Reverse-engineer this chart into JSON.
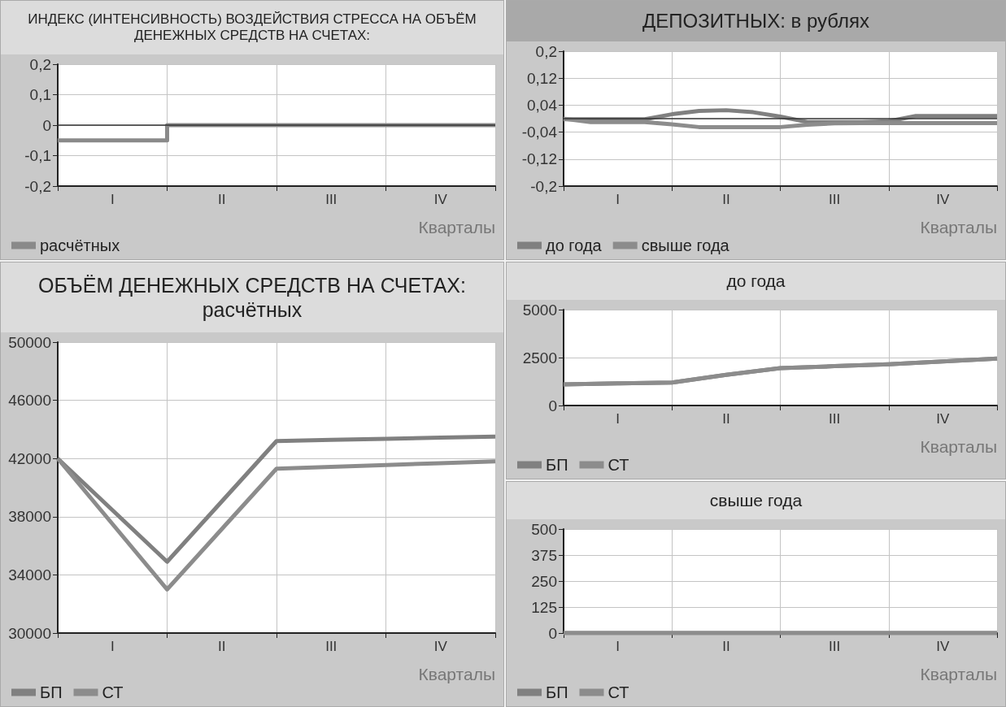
{
  "chart_data": [
    {
      "type": "step",
      "title": "ИНДЕКС (ИНТЕНСИВНОСТЬ) ВОЗДЕЙСТВИЯ СТРЕССА НА ОБЪЁМ ДЕНЕЖНЫХ СРЕДСТВ НА СЧЕТАХ:",
      "xlabel": "Кварталы",
      "categories": [
        null,
        "I",
        null,
        "II",
        null,
        "III",
        null,
        "IV",
        null
      ],
      "ylim": [
        -0.2,
        0.2
      ],
      "yticks": [
        {
          "value": -0.2,
          "label": "-0,2"
        },
        {
          "value": -0.1,
          "label": "-0,1"
        },
        0,
        {
          "value": 0.1,
          "label": "0,1"
        },
        {
          "value": 0.2,
          "label": "0,2"
        }
      ],
      "grid": true,
      "legend": "bottom left",
      "marker": "none",
      "ref_lines": [
        {
          "axis": "y",
          "value": 0,
          "color": "#333333"
        }
      ],
      "series": [
        {
          "name": "расчётных",
          "color": "#8a8a8a",
          "values": [
            -0.05,
            -0.05,
            0,
            0,
            0,
            0,
            0,
            0,
            0
          ]
        }
      ]
    },
    {
      "type": "line",
      "title": "ДЕПОЗИТНЫХ: в рублях",
      "xlabel": "Кварталы",
      "categories": [
        null,
        null,
        "I",
        null,
        null,
        null,
        "II",
        null,
        null,
        null,
        "III",
        null,
        null,
        null,
        "IV",
        null,
        null
      ],
      "ylim": [
        -0.2,
        0.2
      ],
      "yticks": [
        {
          "value": -0.2,
          "label": "-0,2"
        },
        {
          "value": -0.12,
          "label": "-0,12"
        },
        {
          "value": -0.04,
          "label": "-0,04"
        },
        {
          "value": 0.04,
          "label": "0,04"
        },
        {
          "value": 0.12,
          "label": "0,12"
        },
        {
          "value": 0.2,
          "label": "0,2"
        }
      ],
      "grid": true,
      "legend": "bottom left",
      "marker": "none",
      "ref_lines": [
        {
          "axis": "y",
          "value": 0,
          "color": "#333333"
        }
      ],
      "series": [
        {
          "name": "до года",
          "color": "#808080",
          "values": [
            -0.002,
            -0.002,
            -0.002,
            -0.002,
            0.013,
            0.023,
            0.025,
            0.019,
            0.006,
            -0.01,
            -0.01,
            -0.01,
            -0.008,
            0.008,
            0.008,
            0.008,
            0.008
          ]
        },
        {
          "name": "свыше года",
          "color": "#8c8c8c",
          "values": [
            0,
            -0.01,
            -0.01,
            -0.01,
            -0.017,
            -0.025,
            -0.025,
            -0.025,
            -0.025,
            -0.018,
            -0.014,
            -0.013,
            -0.013,
            -0.013,
            -0.013,
            -0.013,
            -0.013
          ]
        }
      ]
    },
    {
      "type": "line",
      "title": "ОБЪЁМ ДЕНЕЖНЫХ СРЕДСТВ НА СЧЕТАХ: расчётных",
      "xlabel": "Кварталы",
      "categories": [
        null,
        "I",
        null,
        "II",
        null,
        "III",
        null,
        "IV",
        null
      ],
      "ylim": [
        30000,
        50000
      ],
      "yticks": [
        30000,
        34000,
        38000,
        42000,
        46000,
        50000
      ],
      "grid": true,
      "legend": "bottom left",
      "marker": "none",
      "series": [
        {
          "name": "БП",
          "color": "#808080",
          "values": [
            42000,
            38450,
            34900,
            39050,
            43200,
            43280,
            43350,
            43430,
            43500
          ]
        },
        {
          "name": "СТ",
          "color": "#8c8c8c",
          "values": [
            42000,
            37500,
            33000,
            37150,
            41300,
            41430,
            41550,
            41680,
            41800
          ]
        }
      ]
    },
    {
      "type": "line",
      "title": "до года",
      "xlabel": "Кварталы",
      "categories": [
        null,
        "I",
        null,
        "II",
        null,
        "III",
        null,
        "IV",
        null
      ],
      "ylim": [
        0,
        5000
      ],
      "yticks": [
        0,
        2500,
        5000
      ],
      "grid": true,
      "legend": "bottom left",
      "marker": "none",
      "series": [
        {
          "name": "БП",
          "color": "#808080",
          "values": [
            1100,
            1150,
            1200,
            1600,
            1950,
            2050,
            2150,
            2300,
            2450
          ]
        },
        {
          "name": "СТ",
          "color": "#8c8c8c",
          "values": [
            1100,
            1150,
            1200,
            1600,
            1950,
            2050,
            2150,
            2300,
            2450
          ]
        }
      ]
    },
    {
      "type": "line",
      "title": "свыше года",
      "xlabel": "Кварталы",
      "categories": [
        null,
        "I",
        null,
        "II",
        null,
        "III",
        null,
        "IV",
        null
      ],
      "ylim": [
        0,
        500
      ],
      "yticks": [
        0,
        125,
        250,
        375,
        500
      ],
      "grid": true,
      "legend": "bottom left",
      "marker": "none",
      "series": [
        {
          "name": "БП",
          "color": "#808080",
          "values": [
            0,
            0,
            0,
            0,
            0,
            0,
            0,
            0,
            0
          ]
        },
        {
          "name": "СТ",
          "color": "#8c8c8c",
          "values": [
            0,
            0,
            0,
            0,
            0,
            0,
            0,
            0,
            0
          ]
        }
      ]
    }
  ]
}
